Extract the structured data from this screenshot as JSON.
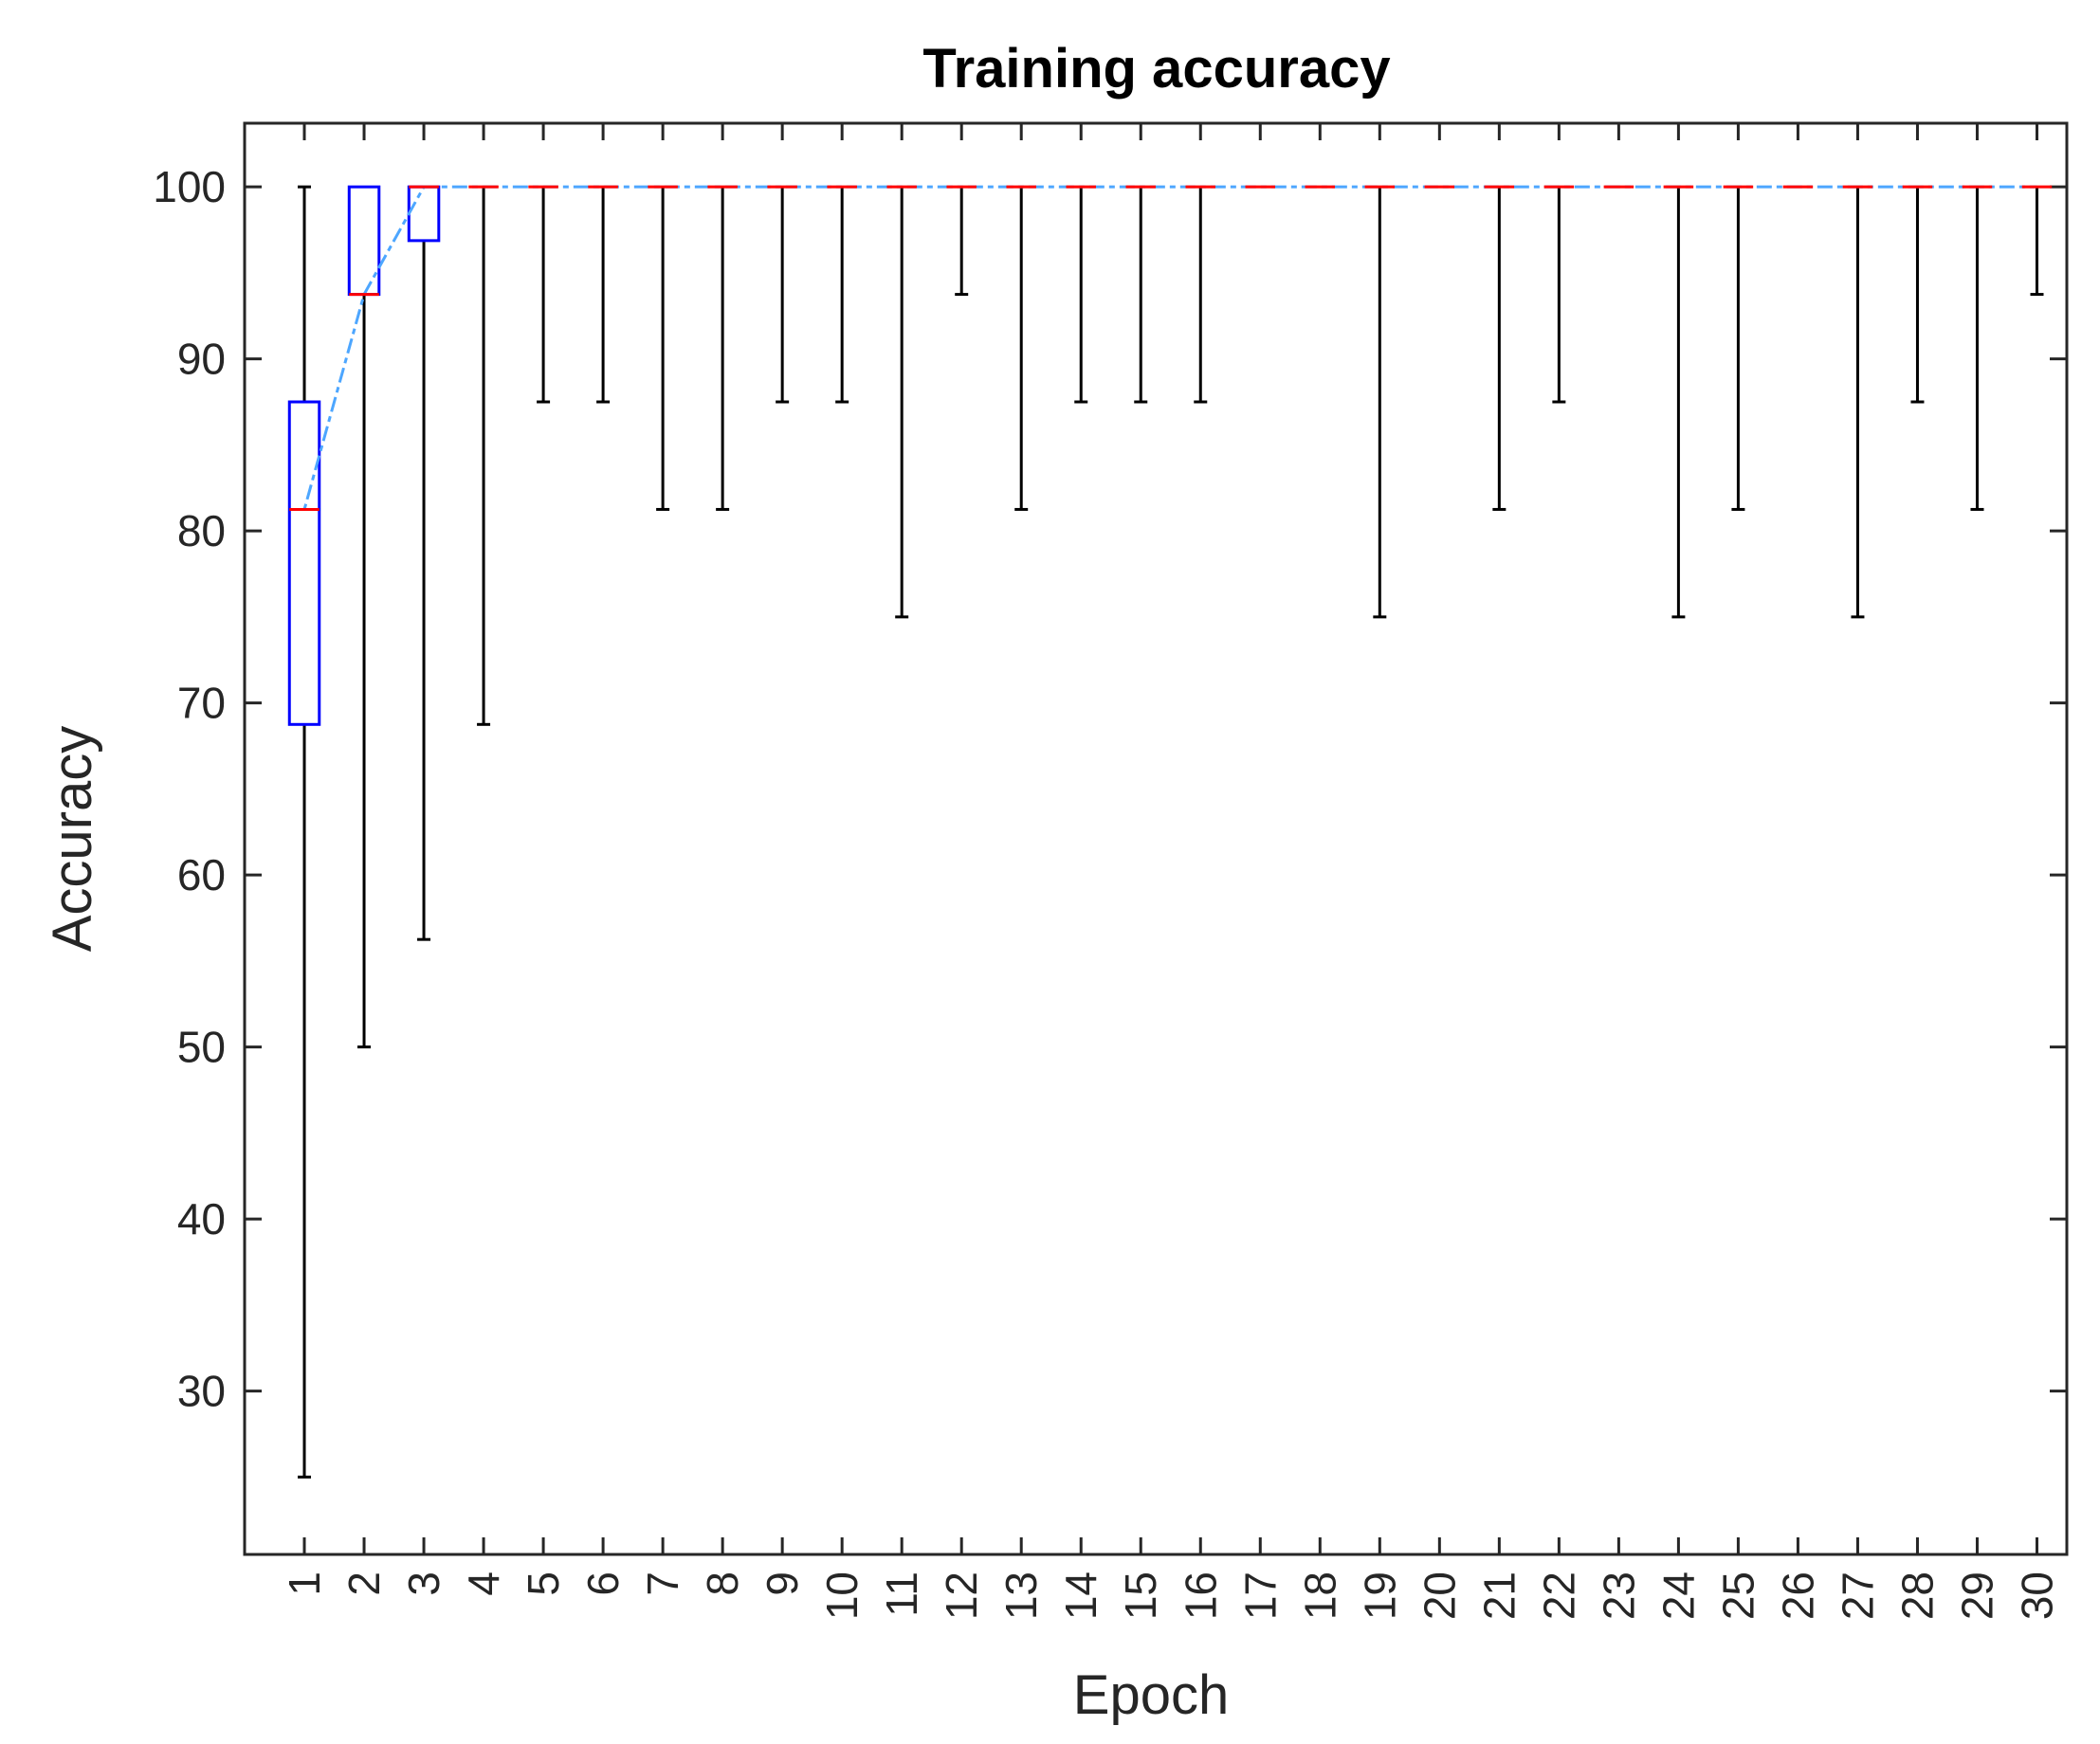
{
  "chart_data": {
    "type": "boxplot",
    "title": "Training accuracy",
    "xlabel": "Epoch",
    "ylabel": "Accuracy",
    "ylim": [
      20.5,
      103.7
    ],
    "yticks": [
      30,
      40,
      50,
      60,
      70,
      80,
      90,
      100
    ],
    "categories": [
      "1",
      "2",
      "3",
      "4",
      "5",
      "6",
      "7",
      "8",
      "9",
      "10",
      "11",
      "12",
      "13",
      "14",
      "15",
      "16",
      "17",
      "18",
      "19",
      "20",
      "21",
      "22",
      "23",
      "24",
      "25",
      "26",
      "27",
      "28",
      "29",
      "30"
    ],
    "boxes": [
      {
        "whisker_low": 25,
        "q1": 68.75,
        "median": 81.25,
        "q3": 87.5,
        "whisker_high": 100
      },
      {
        "whisker_low": 50,
        "q1": 93.75,
        "median": 93.75,
        "q3": 100,
        "whisker_high": 100
      },
      {
        "whisker_low": 56.25,
        "q1": 96.875,
        "median": 100,
        "q3": 100,
        "whisker_high": 100
      },
      {
        "whisker_low": 68.75,
        "q1": 100,
        "median": 100,
        "q3": 100,
        "whisker_high": 100
      },
      {
        "whisker_low": 87.5,
        "q1": 100,
        "median": 100,
        "q3": 100,
        "whisker_high": 100
      },
      {
        "whisker_low": 87.5,
        "q1": 100,
        "median": 100,
        "q3": 100,
        "whisker_high": 100
      },
      {
        "whisker_low": 81.25,
        "q1": 100,
        "median": 100,
        "q3": 100,
        "whisker_high": 100
      },
      {
        "whisker_low": 81.25,
        "q1": 100,
        "median": 100,
        "q3": 100,
        "whisker_high": 100
      },
      {
        "whisker_low": 87.5,
        "q1": 100,
        "median": 100,
        "q3": 100,
        "whisker_high": 100
      },
      {
        "whisker_low": 87.5,
        "q1": 100,
        "median": 100,
        "q3": 100,
        "whisker_high": 100
      },
      {
        "whisker_low": 75,
        "q1": 100,
        "median": 100,
        "q3": 100,
        "whisker_high": 100
      },
      {
        "whisker_low": 93.75,
        "q1": 100,
        "median": 100,
        "q3": 100,
        "whisker_high": 100
      },
      {
        "whisker_low": 81.25,
        "q1": 100,
        "median": 100,
        "q3": 100,
        "whisker_high": 100
      },
      {
        "whisker_low": 87.5,
        "q1": 100,
        "median": 100,
        "q3": 100,
        "whisker_high": 100
      },
      {
        "whisker_low": 87.5,
        "q1": 100,
        "median": 100,
        "q3": 100,
        "whisker_high": 100
      },
      {
        "whisker_low": 87.5,
        "q1": 100,
        "median": 100,
        "q3": 100,
        "whisker_high": 100
      },
      {
        "whisker_low": 100,
        "q1": 100,
        "median": 100,
        "q3": 100,
        "whisker_high": 100
      },
      {
        "whisker_low": 100,
        "q1": 100,
        "median": 100,
        "q3": 100,
        "whisker_high": 100
      },
      {
        "whisker_low": 75,
        "q1": 100,
        "median": 100,
        "q3": 100,
        "whisker_high": 100
      },
      {
        "whisker_low": 100,
        "q1": 100,
        "median": 100,
        "q3": 100,
        "whisker_high": 100
      },
      {
        "whisker_low": 81.25,
        "q1": 100,
        "median": 100,
        "q3": 100,
        "whisker_high": 100
      },
      {
        "whisker_low": 87.5,
        "q1": 100,
        "median": 100,
        "q3": 100,
        "whisker_high": 100
      },
      {
        "whisker_low": 100,
        "q1": 100,
        "median": 100,
        "q3": 100,
        "whisker_high": 100
      },
      {
        "whisker_low": 75,
        "q1": 100,
        "median": 100,
        "q3": 100,
        "whisker_high": 100
      },
      {
        "whisker_low": 81.25,
        "q1": 100,
        "median": 100,
        "q3": 100,
        "whisker_high": 100
      },
      {
        "whisker_low": 100,
        "q1": 100,
        "median": 100,
        "q3": 100,
        "whisker_high": 100
      },
      {
        "whisker_low": 75,
        "q1": 100,
        "median": 100,
        "q3": 100,
        "whisker_high": 100
      },
      {
        "whisker_low": 87.5,
        "q1": 100,
        "median": 100,
        "q3": 100,
        "whisker_high": 100
      },
      {
        "whisker_low": 81.25,
        "q1": 100,
        "median": 100,
        "q3": 100,
        "whisker_high": 100
      },
      {
        "whisker_low": 93.75,
        "q1": 100,
        "median": 100,
        "q3": 100,
        "whisker_high": 100
      }
    ],
    "grid": false,
    "legend": "none",
    "colors": {
      "box": "#0000ff",
      "median": "#ff0000",
      "whisker": "#000000",
      "median_trend": "#4da6ff",
      "axes": "#262626"
    }
  }
}
